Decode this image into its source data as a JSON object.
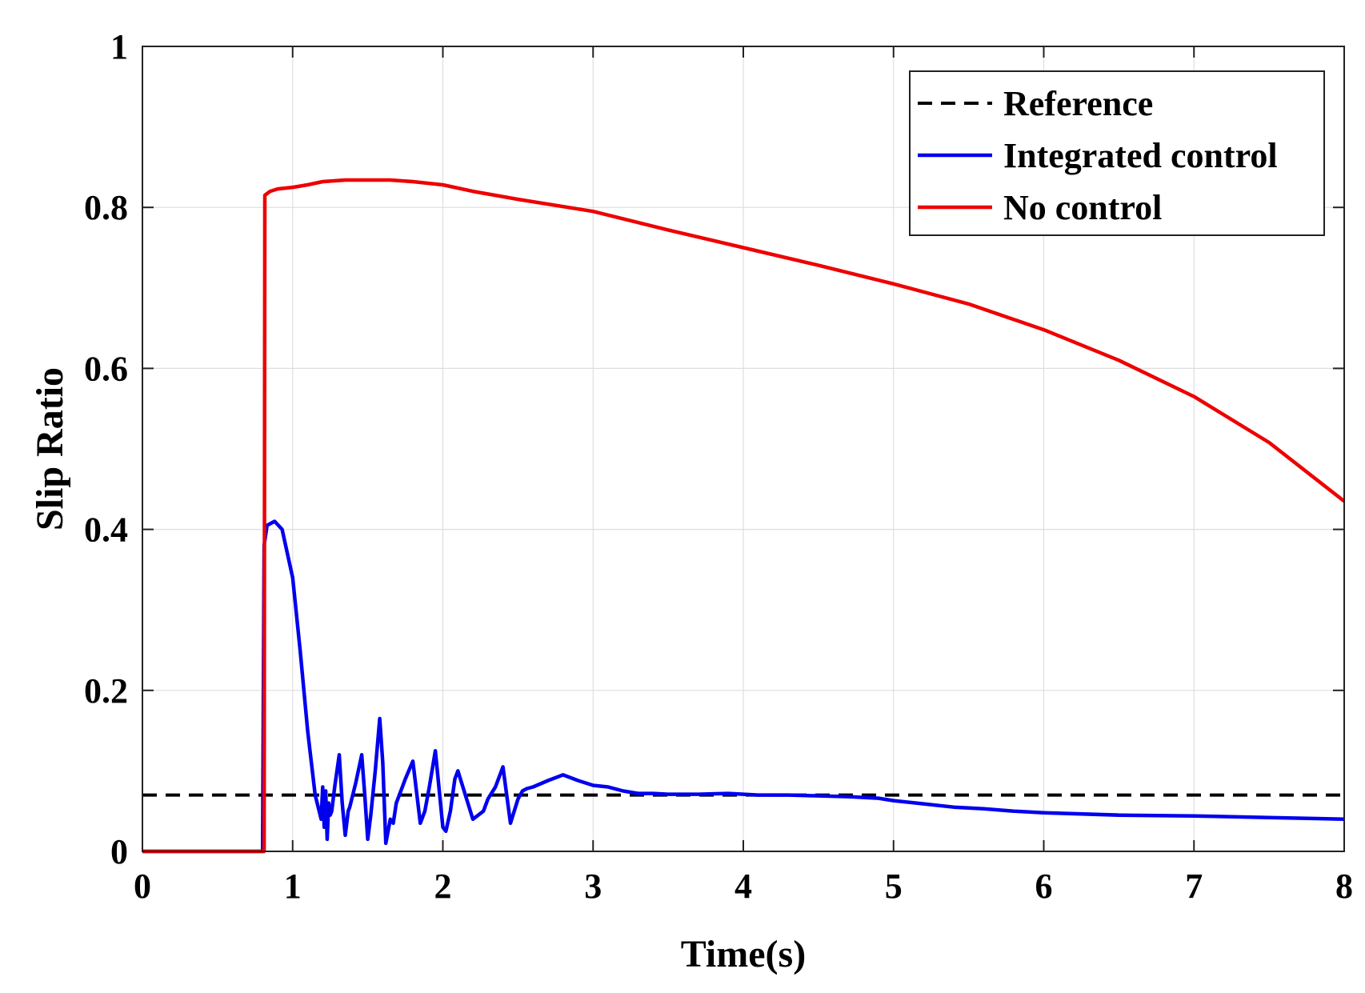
{
  "chart_data": {
    "type": "line",
    "title": "",
    "xlabel": "Time(s)",
    "ylabel": "Slip Ratio",
    "xlim": [
      0,
      8
    ],
    "ylim": [
      0,
      1
    ],
    "xticks": [
      0,
      1,
      2,
      3,
      4,
      5,
      6,
      7,
      8
    ],
    "xtick_labels": [
      "0",
      "1",
      "2",
      "3",
      "4",
      "5",
      "6",
      "7",
      "8"
    ],
    "yticks": [
      0,
      0.2,
      0.4,
      0.6,
      0.8,
      1
    ],
    "ytick_labels": [
      "0",
      "0.2",
      "0.4",
      "0.6",
      "0.8",
      "1"
    ],
    "grid": true,
    "legend_position": "top-right",
    "series": [
      {
        "name": "Reference",
        "color": "#000000",
        "style": "dashed",
        "x": [
          0,
          8
        ],
        "y": [
          0.07,
          0.07
        ]
      },
      {
        "name": "Integrated control",
        "color": "#0000ee",
        "style": "solid",
        "x": [
          0,
          0.8,
          0.81,
          0.83,
          0.88,
          0.93,
          1.0,
          1.05,
          1.1,
          1.15,
          1.19,
          1.2,
          1.21,
          1.22,
          1.23,
          1.24,
          1.25,
          1.26,
          1.28,
          1.31,
          1.33,
          1.35,
          1.37,
          1.38,
          1.42,
          1.46,
          1.48,
          1.5,
          1.52,
          1.55,
          1.58,
          1.6,
          1.62,
          1.65,
          1.67,
          1.69,
          1.71,
          1.75,
          1.8,
          1.85,
          1.88,
          1.91,
          1.95,
          2.0,
          2.02,
          2.05,
          2.08,
          2.1,
          2.2,
          2.27,
          2.3,
          2.35,
          2.4,
          2.45,
          2.5,
          2.53,
          2.56,
          2.6,
          2.7,
          2.8,
          2.9,
          3.0,
          3.1,
          3.2,
          3.3,
          3.4,
          3.5,
          3.7,
          3.9,
          4.1,
          4.3,
          4.5,
          4.7,
          4.9,
          5.0,
          5.2,
          5.4,
          5.6,
          5.8,
          6.0,
          6.5,
          7.0,
          7.5,
          8.0
        ],
        "y": [
          0,
          0,
          0.38,
          0.405,
          0.41,
          0.4,
          0.34,
          0.25,
          0.15,
          0.07,
          0.04,
          0.08,
          0.03,
          0.075,
          0.015,
          0.06,
          0.045,
          0.05,
          0.08,
          0.12,
          0.06,
          0.02,
          0.05,
          0.055,
          0.085,
          0.12,
          0.07,
          0.015,
          0.045,
          0.1,
          0.165,
          0.11,
          0.01,
          0.04,
          0.035,
          0.06,
          0.07,
          0.09,
          0.112,
          0.035,
          0.05,
          0.08,
          0.125,
          0.03,
          0.025,
          0.05,
          0.09,
          0.1,
          0.04,
          0.05,
          0.065,
          0.08,
          0.105,
          0.035,
          0.065,
          0.075,
          0.078,
          0.08,
          0.088,
          0.095,
          0.088,
          0.082,
          0.08,
          0.075,
          0.072,
          0.072,
          0.071,
          0.071,
          0.072,
          0.07,
          0.07,
          0.069,
          0.068,
          0.066,
          0.063,
          0.059,
          0.055,
          0.053,
          0.05,
          0.048,
          0.045,
          0.044,
          0.042,
          0.04
        ]
      },
      {
        "name": "No control",
        "color": "#ee0000",
        "style": "solid",
        "x": [
          0,
          0.81,
          0.815,
          0.85,
          0.9,
          1.0,
          1.1,
          1.2,
          1.35,
          1.5,
          1.65,
          1.8,
          2.0,
          2.2,
          2.5,
          3.0,
          3.5,
          4.0,
          4.5,
          5.0,
          5.5,
          6.0,
          6.5,
          7.0,
          7.5,
          8.0
        ],
        "y": [
          0,
          0,
          0.815,
          0.82,
          0.823,
          0.825,
          0.828,
          0.832,
          0.834,
          0.834,
          0.834,
          0.832,
          0.828,
          0.82,
          0.81,
          0.795,
          0.772,
          0.75,
          0.728,
          0.705,
          0.68,
          0.648,
          0.61,
          0.565,
          0.508,
          0.435
        ]
      }
    ]
  }
}
